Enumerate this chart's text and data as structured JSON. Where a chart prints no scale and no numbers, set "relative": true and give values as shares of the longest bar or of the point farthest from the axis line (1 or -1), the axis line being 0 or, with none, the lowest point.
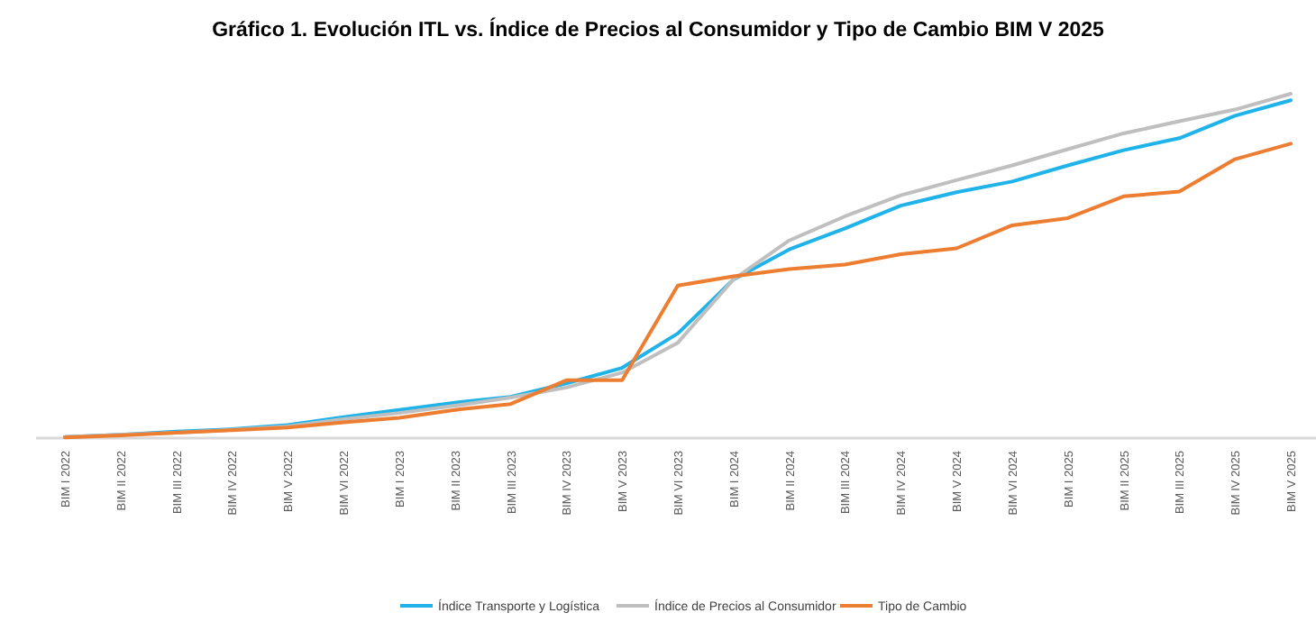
{
  "chart_data": {
    "type": "line",
    "title": "Gráfico 1. Evolución ITL vs. Índice de Precios al Consumidor y Tipo de Cambio BIM V 2025",
    "relative": true,
    "legend": "bottom",
    "categories": [
      "BIM I 2022",
      "BIM II 2022",
      "BIM III 2022",
      "BIM IV 2022",
      "BIM V 2022",
      "BIM VI 2022",
      "BIM I 2023",
      "BIM II 2023",
      "BIM III 2023",
      "BIM IV 2023",
      "BIM V 2023",
      "BIM VI 2023",
      "BIM I 2024",
      "BIM II 2024",
      "BIM III 2024",
      "BIM IV 2024",
      "BIM V 2024",
      "BIM VI 2024",
      "BIM I 2025",
      "BIM II 2025",
      "BIM III 2025",
      "BIM IV 2025",
      "BIM V 2025"
    ],
    "series": [
      {
        "name": "Índice Transporte y Logística",
        "color": "#1fb3ea",
        "values": [
          0.003,
          0.01,
          0.019,
          0.026,
          0.038,
          0.061,
          0.082,
          0.103,
          0.12,
          0.159,
          0.204,
          0.304,
          0.461,
          0.548,
          0.609,
          0.675,
          0.714,
          0.745,
          0.792,
          0.836,
          0.871,
          0.936,
          0.981
        ]
      },
      {
        "name": "Índice de Precios al Consumidor",
        "color": "#bfbfbf",
        "values": [
          0.003,
          0.01,
          0.016,
          0.024,
          0.034,
          0.055,
          0.073,
          0.094,
          0.118,
          0.147,
          0.19,
          0.277,
          0.461,
          0.574,
          0.644,
          0.705,
          0.749,
          0.792,
          0.839,
          0.885,
          0.92,
          0.954,
          1
        ]
      },
      {
        "name": "Tipo de Cambio",
        "color": "#ed7d31",
        "values": [
          0.002,
          0.008,
          0.016,
          0.023,
          0.031,
          0.046,
          0.059,
          0.082,
          0.099,
          0.168,
          0.168,
          0.443,
          0.47,
          0.491,
          0.504,
          0.534,
          0.551,
          0.618,
          0.639,
          0.702,
          0.716,
          0.81,
          0.855
        ]
      }
    ]
  }
}
